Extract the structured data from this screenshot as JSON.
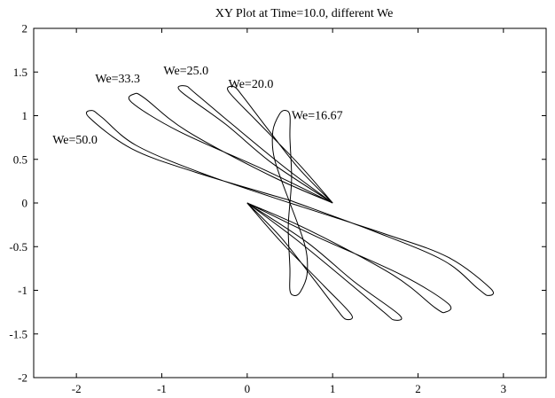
{
  "chart_data": {
    "type": "line",
    "title": "XY Plot at Time=10.0, different We",
    "xlabel": "",
    "ylabel": "",
    "xlim": [
      -2.5,
      3.5
    ],
    "ylim": [
      -2,
      2
    ],
    "x_ticks": [
      -2,
      -1,
      0,
      1,
      2,
      3
    ],
    "y_ticks": [
      2,
      1.5,
      1,
      0.5,
      0,
      -0.5,
      -1,
      -1.5,
      -2
    ],
    "x_tick_labels": [
      "-2",
      "-1",
      "0",
      "1",
      "2",
      "3"
    ],
    "y_tick_labels": [
      "2",
      "1.5",
      "1",
      "0.5",
      "0",
      "-0.5",
      "-1",
      "-1.5",
      "-2"
    ],
    "grid": false,
    "series": [
      {
        "name": "We=50.0",
        "left_lobe": [
          [
            0.5,
            0.03
          ],
          [
            -0.6,
            0.35
          ],
          [
            -1.35,
            0.62
          ],
          [
            -1.85,
            0.98
          ],
          [
            -1.82,
            1.06
          ],
          [
            -1.7,
            0.98
          ],
          [
            -1.3,
            0.66
          ],
          [
            -0.5,
            0.33
          ],
          [
            0.5,
            0.0
          ]
        ],
        "right_lobe": [
          [
            0.5,
            0.0
          ],
          [
            1.6,
            -0.35
          ],
          [
            2.35,
            -0.62
          ],
          [
            2.85,
            -0.98
          ],
          [
            2.82,
            -1.06
          ],
          [
            2.7,
            -0.98
          ],
          [
            2.3,
            -0.66
          ],
          [
            1.5,
            -0.33
          ],
          [
            0.5,
            0.03
          ]
        ]
      },
      {
        "name": "We=33.3",
        "left_lobe": [
          [
            1.0,
            0.0
          ],
          [
            0.2,
            0.38
          ],
          [
            -0.8,
            0.82
          ],
          [
            -1.35,
            1.15
          ],
          [
            -1.32,
            1.25
          ],
          [
            -1.2,
            1.2
          ],
          [
            -0.7,
            0.82
          ],
          [
            0.3,
            0.3
          ],
          [
            1.0,
            0.0
          ]
        ],
        "right_lobe": [
          [
            0.0,
            0.0
          ],
          [
            0.8,
            -0.38
          ],
          [
            1.8,
            -0.82
          ],
          [
            2.35,
            -1.15
          ],
          [
            2.32,
            -1.25
          ],
          [
            2.2,
            -1.2
          ],
          [
            1.7,
            -0.82
          ],
          [
            0.7,
            -0.3
          ],
          [
            0.0,
            0.0
          ]
        ]
      },
      {
        "name": "We=25.0",
        "left_lobe": [
          [
            1.0,
            0.0
          ],
          [
            0.3,
            0.45
          ],
          [
            -0.25,
            0.9
          ],
          [
            -0.78,
            1.28
          ],
          [
            -0.72,
            1.34
          ],
          [
            -0.6,
            1.25
          ],
          [
            -0.15,
            0.88
          ],
          [
            0.45,
            0.4
          ],
          [
            1.0,
            0.0
          ]
        ],
        "right_lobe": [
          [
            0.0,
            0.0
          ],
          [
            0.7,
            -0.45
          ],
          [
            1.25,
            -0.9
          ],
          [
            1.78,
            -1.28
          ],
          [
            1.72,
            -1.34
          ],
          [
            1.6,
            -1.25
          ],
          [
            1.15,
            -0.88
          ],
          [
            0.55,
            -0.4
          ],
          [
            0.0,
            0.0
          ]
        ]
      },
      {
        "name": "We=20.0",
        "left_lobe": [
          [
            1.0,
            0.0
          ],
          [
            0.6,
            0.45
          ],
          [
            0.1,
            0.95
          ],
          [
            -0.22,
            1.28
          ],
          [
            -0.15,
            1.33
          ],
          [
            -0.05,
            1.22
          ],
          [
            0.2,
            0.9
          ],
          [
            0.6,
            0.4
          ],
          [
            1.0,
            0.0
          ]
        ],
        "right_lobe": [
          [
            0.0,
            0.0
          ],
          [
            0.4,
            -0.45
          ],
          [
            0.9,
            -0.95
          ],
          [
            1.22,
            -1.28
          ],
          [
            1.15,
            -1.33
          ],
          [
            1.05,
            -1.22
          ],
          [
            0.8,
            -0.9
          ],
          [
            0.4,
            -0.4
          ],
          [
            0.0,
            0.0
          ]
        ]
      },
      {
        "name": "We=16.67",
        "left_lobe": [
          [
            0.5,
            0.0
          ],
          [
            0.32,
            0.5
          ],
          [
            0.3,
            0.82
          ],
          [
            0.38,
            1.02
          ],
          [
            0.45,
            1.06
          ],
          [
            0.5,
            1.0
          ],
          [
            0.5,
            0.75
          ],
          [
            0.52,
            0.3
          ],
          [
            0.5,
            0.0
          ]
        ],
        "right_lobe": [
          [
            0.5,
            0.0
          ],
          [
            0.68,
            -0.5
          ],
          [
            0.7,
            -0.82
          ],
          [
            0.62,
            -1.02
          ],
          [
            0.55,
            -1.06
          ],
          [
            0.5,
            -1.0
          ],
          [
            0.5,
            -0.75
          ],
          [
            0.48,
            -0.3
          ],
          [
            0.5,
            0.0
          ]
        ]
      }
    ],
    "annotations": [
      {
        "text": "We=50.0",
        "x": -2.28,
        "y": 0.68
      },
      {
        "text": "We=33.3",
        "x": -1.78,
        "y": 1.38
      },
      {
        "text": "We=25.0",
        "x": -0.98,
        "y": 1.47
      },
      {
        "text": "We=20.0",
        "x": -0.22,
        "y": 1.32
      },
      {
        "text": "We=16.67",
        "x": 0.52,
        "y": 0.96
      }
    ]
  }
}
